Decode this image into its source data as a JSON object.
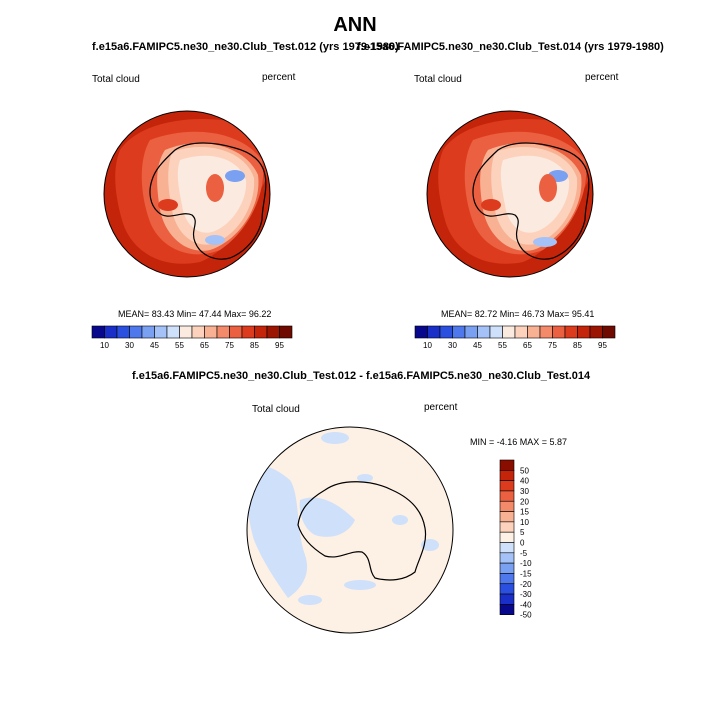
{
  "title": "ANN",
  "panels": [
    {
      "subtitle": "f.e15a6.FAMIPC5.ne30_ne30.Club_Test.012 (yrs 1979-1980)",
      "left_label": "Total cloud",
      "right_label": "percent",
      "stats": "MEAN=  83.43  Min=  47.44  Max=  96.22"
    },
    {
      "subtitle": "f.e15a6.FAMIPC5.ne30_ne30.Club_Test.014 (yrs 1979-1980)",
      "left_label": "Total cloud",
      "right_label": "percent",
      "stats": "MEAN=  82.72  Min=  46.73  Max=  95.41"
    },
    {
      "subtitle": "f.e15a6.FAMIPC5.ne30_ne30.Club_Test.012 - f.e15a6.FAMIPC5.ne30_ne30.Club_Test.014",
      "left_label": "Total cloud",
      "right_label": "percent",
      "stats": "MIN =  -4.16 MAX =  5.87"
    }
  ],
  "colorbar_main": {
    "colors": [
      "#08088c",
      "#1a2fc8",
      "#2b50e0",
      "#4f78ec",
      "#7aa0f2",
      "#a4c2f7",
      "#cfe0fb",
      "#fbeadf",
      "#fcd2bd",
      "#f8b293",
      "#f38a6a",
      "#ea6040",
      "#dd3b1d",
      "#c42409",
      "#9c1402",
      "#6e0a00"
    ],
    "labels": [
      "10",
      "30",
      "45",
      "55",
      "65",
      "75",
      "85",
      "95"
    ]
  },
  "colorbar_diff": {
    "colors": [
      "#08088c",
      "#1a2fc8",
      "#2b50e0",
      "#4f78ec",
      "#7aa0f2",
      "#a4c2f7",
      "#cfe0fb",
      "#fdf0e4",
      "#fcd2bd",
      "#f8b293",
      "#f38a6a",
      "#ea6040",
      "#dd3b1d",
      "#c42409",
      "#8a0e00"
    ],
    "labels": [
      "50",
      "40",
      "30",
      "20",
      "15",
      "10",
      "5",
      "0",
      "-5",
      "-10",
      "-15",
      "-20",
      "-30",
      "-40",
      "-50"
    ]
  }
}
